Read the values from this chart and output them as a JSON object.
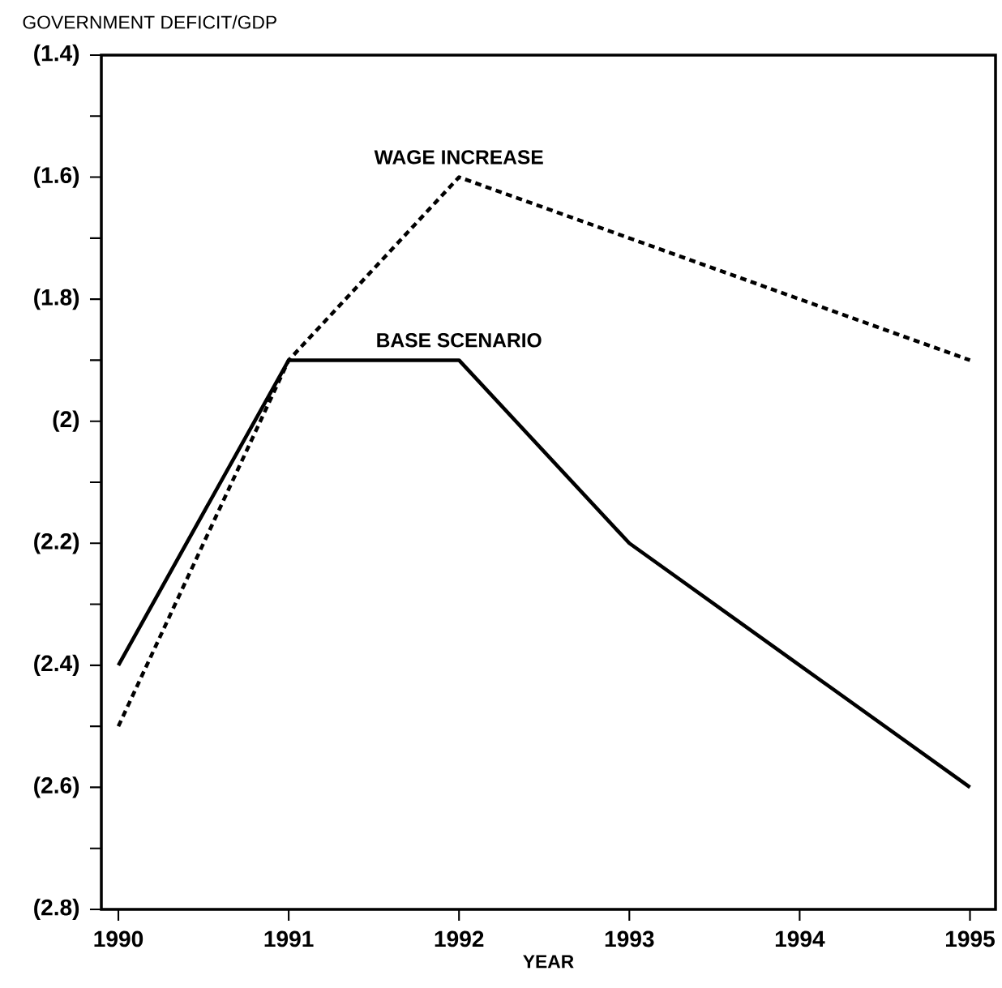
{
  "chart_data": {
    "type": "line",
    "ylabel": "GOVERNMENT DEFICIT/GDP",
    "xlabel": "YEAR",
    "x": [
      1990,
      1991,
      1992,
      1993,
      1994,
      1995
    ],
    "series": [
      {
        "name": "WAGE INCREASE",
        "color": "#000000",
        "line_style": "dashed",
        "values": [
          -2.5,
          -1.9,
          -1.6,
          -1.7,
          -1.8,
          -1.9
        ]
      },
      {
        "name": "BASE SCENARIO",
        "color": "#000000",
        "line_style": "solid",
        "values": [
          -2.4,
          -1.9,
          -1.9,
          -2.2,
          -2.4,
          -2.6
        ]
      }
    ],
    "xlim": [
      1989.9,
      1995.15
    ],
    "xticks": [
      1990,
      1991,
      1992,
      1993,
      1994,
      1995
    ],
    "ylim": [
      -2.8,
      -1.4
    ],
    "yticks": [
      {
        "value": -2.8,
        "label": "(2.8)"
      },
      {
        "value": -2.7,
        "label": null
      },
      {
        "value": -2.6,
        "label": "(2.6)"
      },
      {
        "value": -2.5,
        "label": null
      },
      {
        "value": -2.4,
        "label": "(2.4)"
      },
      {
        "value": -2.3,
        "label": null
      },
      {
        "value": -2.2,
        "label": "(2.2)"
      },
      {
        "value": -2.1,
        "label": null
      },
      {
        "value": -2.0,
        "label": "(2)"
      },
      {
        "value": -1.9,
        "label": null
      },
      {
        "value": -1.8,
        "label": "(1.8)"
      },
      {
        "value": -1.7,
        "label": null
      },
      {
        "value": -1.6,
        "label": "(1.6)"
      },
      {
        "value": -1.5,
        "label": null
      },
      {
        "value": -1.4,
        "label": "(1.4)"
      }
    ],
    "grid": false,
    "marker": "none"
  }
}
